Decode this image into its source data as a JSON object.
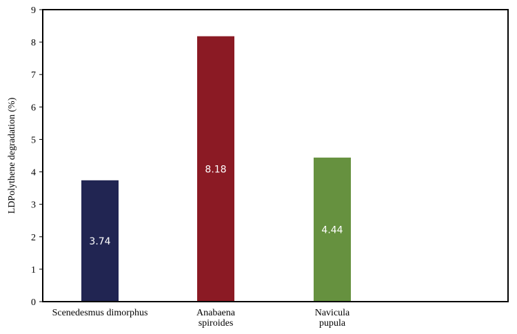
{
  "chart_data": {
    "type": "bar",
    "title": "",
    "xlabel": "",
    "ylabel": "LDPolythene degradation (%)",
    "ylim": [
      0,
      9
    ],
    "yticks": [
      0,
      1,
      2,
      3,
      4,
      5,
      6,
      7,
      8,
      9
    ],
    "grid": false,
    "legend": "none",
    "categories": [
      [
        "Scenedesmus dimorphus"
      ],
      [
        "Anabaena",
        "spiroides"
      ],
      [
        "Navicula",
        "pupula"
      ]
    ],
    "values": [
      3.74,
      8.18,
      4.44
    ],
    "data_labels": [
      "3.74",
      "8.18",
      "4.44"
    ],
    "colors": [
      "#212552",
      "#8b1a24",
      "#66913f"
    ]
  }
}
